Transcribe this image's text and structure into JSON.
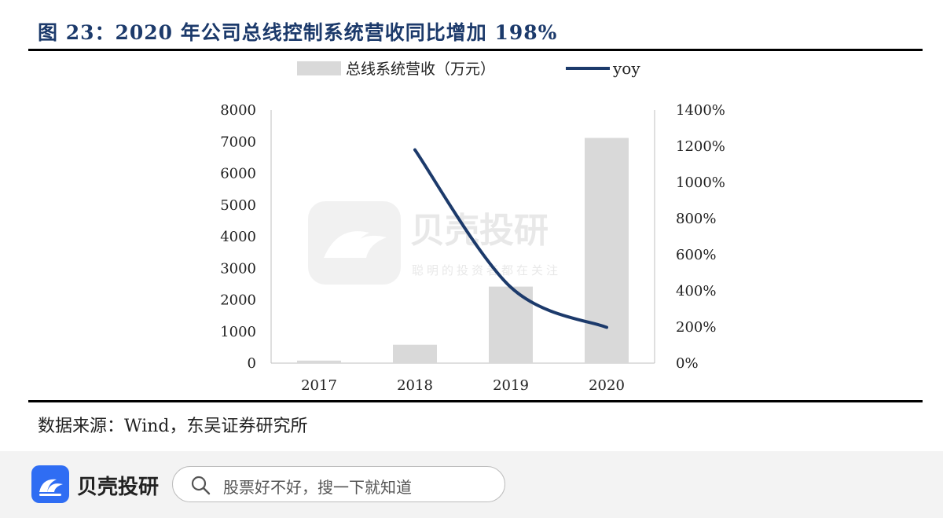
{
  "figure_title": "图 23：2020 年公司总线控制系统营收同比增加 198%",
  "source_note": "数据来源：Wind，东吴证券研究所",
  "watermark": {
    "brand": "贝壳投研",
    "slogan": "聪明的投资者都在关注"
  },
  "footer": {
    "brand": "贝壳投研",
    "search_placeholder": "股票好不好，搜一下就知道"
  },
  "colors": {
    "bar": "#d9d9d9",
    "line": "#1c3a6b",
    "title": "#1c3a6b",
    "brand": "#2f6df3"
  },
  "chart_data": {
    "type": "bar+line",
    "categories": [
      "2017",
      "2018",
      "2019",
      "2020"
    ],
    "series": [
      {
        "name": "总线系统营收（万元）",
        "type": "bar",
        "axis": "left",
        "values": [
          80,
          580,
          2420,
          7120
        ]
      },
      {
        "name": "yoy",
        "type": "line",
        "axis": "right",
        "values": [
          null,
          1180,
          420,
          198
        ]
      }
    ],
    "left_axis": {
      "min": 0,
      "max": 8000,
      "ticks": [
        "0",
        "1000",
        "2000",
        "3000",
        "4000",
        "5000",
        "6000",
        "7000",
        "8000"
      ]
    },
    "right_axis": {
      "min": 0,
      "max": 1400,
      "ticks": [
        "0%",
        "200%",
        "400%",
        "600%",
        "800%",
        "1000%",
        "1200%",
        "1400%"
      ]
    },
    "legend_position": "top-center",
    "grid": false
  }
}
